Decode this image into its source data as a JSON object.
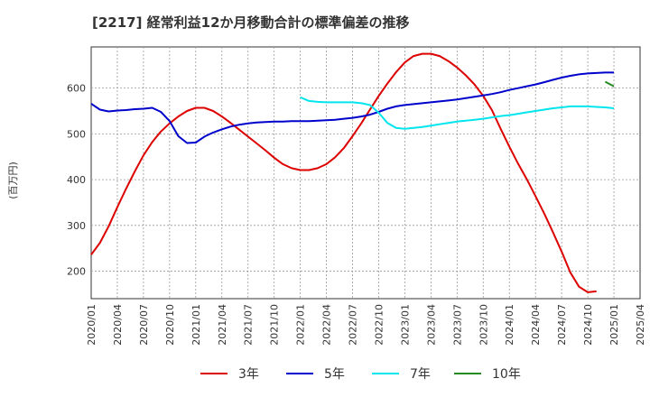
{
  "chart_data": {
    "type": "line",
    "title": "[2217]  経常利益12か月移動合計の標準偏差の推移",
    "ylabel": "(百万円)",
    "xlabel": "",
    "ylim": [
      140,
      690
    ],
    "yticks": [
      200,
      300,
      400,
      500,
      600
    ],
    "xlim": [
      "2020-01",
      "2025-04"
    ],
    "xticks": [
      "2020/01",
      "2020/04",
      "2020/07",
      "2020/10",
      "2021/01",
      "2021/04",
      "2021/07",
      "2021/10",
      "2022/01",
      "2022/04",
      "2022/07",
      "2022/10",
      "2023/01",
      "2023/04",
      "2023/07",
      "2023/10",
      "2024/01",
      "2024/04",
      "2024/07",
      "2024/10",
      "2025/01",
      "2025/04"
    ],
    "grid": true,
    "legend_position": "bottom",
    "series": [
      {
        "name": "3年",
        "color": "#dd0000",
        "x": [
          "2020-01",
          "2020-02",
          "2020-03",
          "2020-04",
          "2020-05",
          "2020-06",
          "2020-07",
          "2020-08",
          "2020-09",
          "2020-10",
          "2020-11",
          "2020-12",
          "2021-01",
          "2021-02",
          "2021-03",
          "2021-04",
          "2021-05",
          "2021-06",
          "2021-07",
          "2021-08",
          "2021-09",
          "2021-10",
          "2021-11",
          "2021-12",
          "2022-01",
          "2022-02",
          "2022-03",
          "2022-04",
          "2022-05",
          "2022-06",
          "2022-07",
          "2022-08",
          "2022-09",
          "2022-10",
          "2022-11",
          "2022-12",
          "2023-01",
          "2023-02",
          "2023-03",
          "2023-04",
          "2023-05",
          "2023-06",
          "2023-07",
          "2023-08",
          "2023-09",
          "2023-10",
          "2023-11",
          "2023-12",
          "2024-01",
          "2024-02",
          "2024-03",
          "2024-04",
          "2024-05",
          "2024-06",
          "2024-07",
          "2024-08",
          "2024-09",
          "2024-10",
          "2024-11",
          "2024-12",
          "2025-01"
        ],
        "values": [
          236,
          262,
          298,
          340,
          380,
          418,
          453,
          482,
          505,
          523,
          538,
          550,
          557,
          557,
          550,
          538,
          524,
          509,
          494,
          479,
          464,
          448,
          434,
          425,
          421,
          421,
          425,
          434,
          449,
          469,
          495,
          523,
          553,
          583,
          610,
          635,
          656,
          670,
          675,
          675,
          670,
          659,
          645,
          628,
          608,
          583,
          552,
          511,
          472,
          435,
          401,
          364,
          326,
          285,
          243,
          197,
          166,
          154,
          156,
          null,
          null
        ]
      },
      {
        "name": "5年",
        "color": "#0000cc",
        "x": [
          "2020-01",
          "2020-02",
          "2020-03",
          "2020-04",
          "2020-05",
          "2020-06",
          "2020-07",
          "2020-08",
          "2020-09",
          "2020-10",
          "2020-11",
          "2020-12",
          "2021-01",
          "2021-02",
          "2021-03",
          "2021-04",
          "2021-05",
          "2021-06",
          "2021-07",
          "2021-08",
          "2021-09",
          "2021-10",
          "2021-11",
          "2021-12",
          "2022-01",
          "2022-02",
          "2022-03",
          "2022-04",
          "2022-05",
          "2022-06",
          "2022-07",
          "2022-08",
          "2022-09",
          "2022-10",
          "2022-11",
          "2022-12",
          "2023-01",
          "2023-02",
          "2023-03",
          "2023-04",
          "2023-05",
          "2023-06",
          "2023-07",
          "2023-08",
          "2023-09",
          "2023-10",
          "2023-11",
          "2023-12",
          "2024-01",
          "2024-02",
          "2024-03",
          "2024-04",
          "2024-05",
          "2024-06",
          "2024-07",
          "2024-08",
          "2024-09",
          "2024-10",
          "2024-11",
          "2024-12",
          "2025-01"
        ],
        "values": [
          566,
          553,
          549,
          551,
          552,
          554,
          555,
          557,
          548,
          528,
          495,
          480,
          481,
          494,
          503,
          510,
          516,
          520,
          523,
          525,
          526,
          527,
          527,
          528,
          528,
          528,
          529,
          530,
          531,
          533,
          535,
          538,
          542,
          548,
          555,
          560,
          563,
          565,
          567,
          569,
          571,
          573,
          575,
          578,
          581,
          584,
          587,
          591,
          596,
          600,
          604,
          608,
          613,
          618,
          623,
          627,
          630,
          632,
          633,
          634,
          634
        ]
      },
      {
        "name": "7年",
        "color": "#00e5ee",
        "x": [
          "2022-01",
          "2022-02",
          "2022-03",
          "2022-04",
          "2022-05",
          "2022-06",
          "2022-07",
          "2022-08",
          "2022-09",
          "2022-10",
          "2022-11",
          "2022-12",
          "2023-01",
          "2023-02",
          "2023-03",
          "2023-04",
          "2023-05",
          "2023-06",
          "2023-07",
          "2023-08",
          "2023-09",
          "2023-10",
          "2023-11",
          "2023-12",
          "2024-01",
          "2024-02",
          "2024-03",
          "2024-04",
          "2024-05",
          "2024-06",
          "2024-07",
          "2024-08",
          "2024-09",
          "2024-10",
          "2024-11",
          "2024-12",
          "2025-01"
        ],
        "values": [
          580,
          572,
          570,
          569,
          569,
          569,
          569,
          567,
          563,
          546,
          524,
          513,
          511,
          513,
          515,
          518,
          521,
          524,
          527,
          529,
          531,
          533,
          536,
          539,
          541,
          544,
          547,
          550,
          553,
          556,
          558,
          560,
          560,
          560,
          559,
          558,
          556
        ]
      },
      {
        "name": "10年",
        "color": "#228b22",
        "x": [
          "2024-12",
          "2025-01"
        ],
        "values": [
          614,
          604
        ]
      }
    ]
  }
}
